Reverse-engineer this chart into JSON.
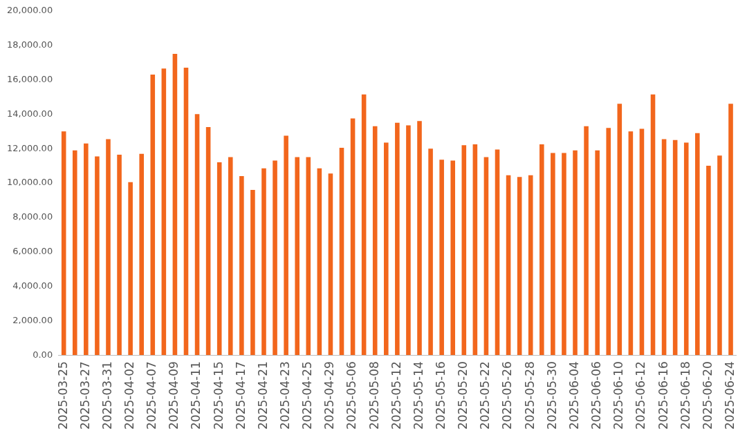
{
  "chart_data": {
    "type": "bar",
    "categories": [
      "2025-03-25",
      null,
      "2025-03-27",
      null,
      "2025-03-31",
      null,
      "2025-04-02",
      null,
      "2025-04-07",
      null,
      "2025-04-09",
      null,
      "2025-04-11",
      null,
      "2025-04-15",
      null,
      "2025-04-17",
      null,
      "2025-04-21",
      null,
      "2025-04-23",
      null,
      "2025-04-25",
      null,
      "2025-04-29",
      null,
      "2025-05-06",
      null,
      "2025-05-08",
      null,
      "2025-05-12",
      null,
      "2025-05-14",
      null,
      "2025-05-16",
      null,
      "2025-05-20",
      null,
      "2025-05-22",
      null,
      "2025-05-26",
      null,
      "2025-05-28",
      null,
      "2025-05-30",
      null,
      "2025-06-04",
      null,
      "2025-06-06",
      null,
      "2025-06-10",
      null,
      "2025-06-12",
      null,
      "2025-06-16",
      null,
      "2025-06-18",
      null,
      "2025-06-20",
      null,
      "2025-06-24"
    ],
    "values": [
      13000,
      11900,
      12300,
      11550,
      12550,
      11650,
      10050,
      11700,
      16300,
      16650,
      17500,
      16700,
      14000,
      13250,
      11200,
      11500,
      10400,
      9600,
      10850,
      11300,
      12750,
      11500,
      11500,
      10850,
      10550,
      12050,
      13750,
      15150,
      13300,
      12350,
      13500,
      13350,
      13600,
      12000,
      11350,
      11300,
      12200,
      12250,
      11500,
      11950,
      10450,
      10350,
      10450,
      12250,
      11750,
      11750,
      11900,
      13300,
      11900,
      13200,
      14600,
      13000,
      13150,
      15150,
      12550,
      12500,
      12350,
      12900,
      11000,
      11600,
      14600
    ],
    "color": "#f2661c",
    "ylim": [
      0,
      20000
    ],
    "yticks": [
      {
        "value": 0,
        "label": "0.00"
      },
      {
        "value": 2000,
        "label": "2,000.00"
      },
      {
        "value": 4000,
        "label": "4,000.00"
      },
      {
        "value": 6000,
        "label": "6,000.00"
      },
      {
        "value": 8000,
        "label": "8,000.00"
      },
      {
        "value": 10000,
        "label": "10,000.00"
      },
      {
        "value": 12000,
        "label": "12,000.00"
      },
      {
        "value": 14000,
        "label": "14,000.00"
      },
      {
        "value": 16000,
        "label": "16,000.00"
      },
      {
        "value": 18000,
        "label": "18,000.00"
      },
      {
        "value": 20000,
        "label": "20,000.00"
      }
    ],
    "grid": false,
    "legend": false
  }
}
